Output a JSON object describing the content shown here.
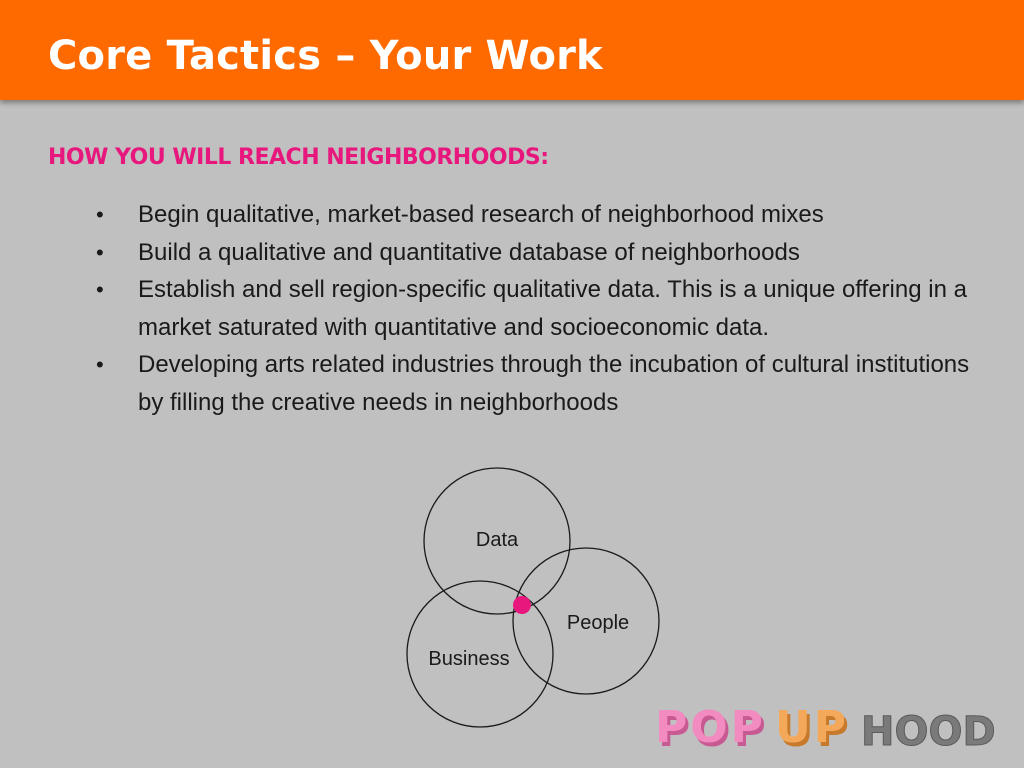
{
  "slide": {
    "title": "Core Tactics – Your Work",
    "subheading": "HOW YOU WILL REACH NEIGHBORHOODS:",
    "bullet_symbol": "•",
    "bullets": [
      "Begin qualitative, market-based research of neighborhood mixes",
      "Build a qualitative and quantitative database of neighborhoods",
      "Establish and sell region-specific qualitative data. This is a unique offering in a market saturated with quantitative and socioeconomic data.",
      "Developing arts related industries through the incubation of cultural institutions by filling the creative needs in neighborhoods"
    ]
  },
  "venn": {
    "labels": {
      "data": "Data",
      "people": "People",
      "business": "Business"
    },
    "center_dot_color": "#e8177d"
  },
  "logo": {
    "text_pop": "POP",
    "text_up": "UP",
    "text_hood": "HOOD",
    "colors": {
      "pop": "#f28cc0",
      "up": "#f4a95a",
      "hood": "#7a7a7a"
    }
  },
  "colors": {
    "header": "#ff6a00",
    "background": "#c0c0c0",
    "accent": "#e8177d"
  }
}
